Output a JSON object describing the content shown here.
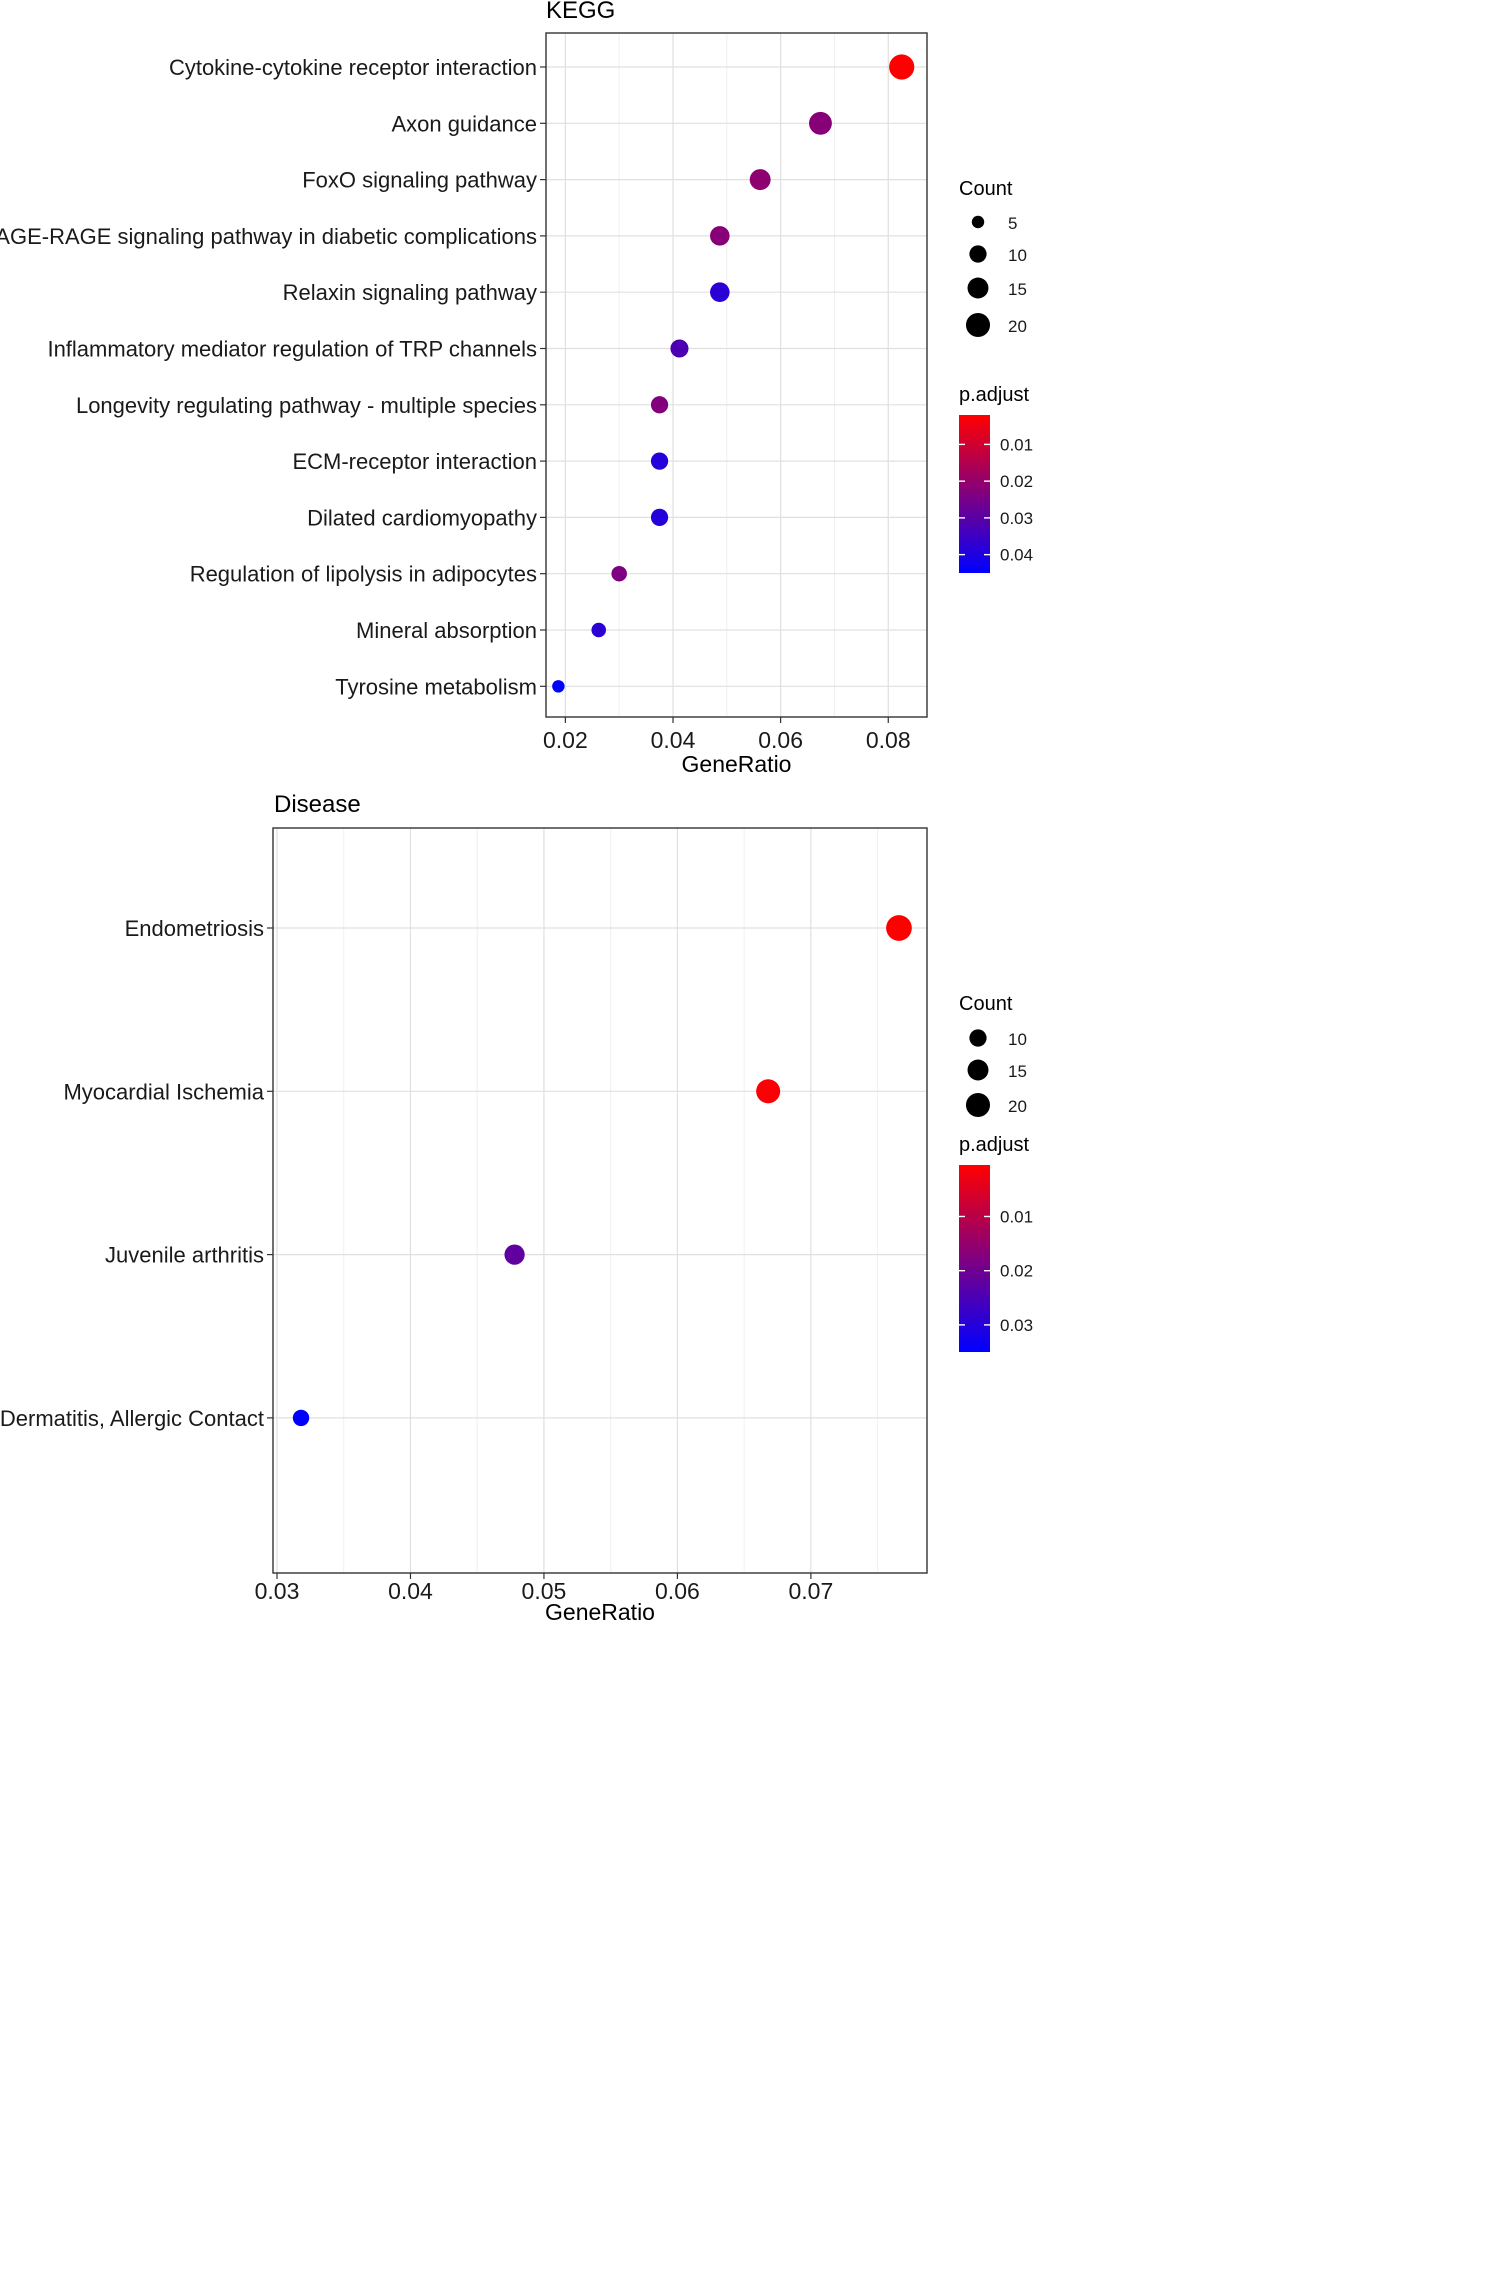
{
  "chart_data": [
    {
      "type": "scatter",
      "title": "KEGG",
      "xlabel": "GeneRatio",
      "ylabel": "",
      "xlim": [
        0.0164,
        0.0872
      ],
      "xticks": [
        0.02,
        0.04,
        0.06,
        0.08
      ],
      "xtick_labels": [
        "0.02",
        "0.04",
        "0.06",
        "0.08"
      ],
      "grid": true,
      "categories": [
        "Cytokine-cytokine receptor interaction",
        "Axon guidance",
        "FoxO signaling pathway",
        "AGE-RAGE signaling pathway in diabetic complications",
        "Relaxin signaling pathway",
        "Inflammatory mediator regulation of TRP channels",
        "Longevity regulating pathway - multiple species",
        "ECM-receptor interaction",
        "Dilated cardiomyopathy",
        "Regulation of lipolysis in adipocytes",
        "Mineral absorption",
        "Tyrosine metabolism"
      ],
      "points": [
        {
          "category": "Cytokine-cytokine receptor interaction",
          "x": 0.0825,
          "count": 22,
          "p_adjust": 0.002
        },
        {
          "category": "Axon guidance",
          "x": 0.0674,
          "count": 18,
          "p_adjust": 0.022
        },
        {
          "category": "FoxO signaling pathway",
          "x": 0.0562,
          "count": 15,
          "p_adjust": 0.021
        },
        {
          "category": "AGE-RAGE signaling pathway in diabetic complications",
          "x": 0.0487,
          "count": 13,
          "p_adjust": 0.022
        },
        {
          "category": "Relaxin signaling pathway",
          "x": 0.0487,
          "count": 13,
          "p_adjust": 0.038
        },
        {
          "category": "Inflammatory mediator regulation of TRP channels",
          "x": 0.0412,
          "count": 11,
          "p_adjust": 0.032
        },
        {
          "category": "Longevity regulating pathway - multiple species",
          "x": 0.0375,
          "count": 10,
          "p_adjust": 0.023
        },
        {
          "category": "ECM-receptor interaction",
          "x": 0.0375,
          "count": 10,
          "p_adjust": 0.039
        },
        {
          "category": "Dilated cardiomyopathy",
          "x": 0.0375,
          "count": 10,
          "p_adjust": 0.039
        },
        {
          "category": "Regulation of lipolysis in adipocytes",
          "x": 0.03,
          "count": 8,
          "p_adjust": 0.024
        },
        {
          "category": "Mineral absorption",
          "x": 0.0262,
          "count": 7,
          "p_adjust": 0.038
        },
        {
          "category": "Tyrosine metabolism",
          "x": 0.0187,
          "count": 5,
          "p_adjust": 0.045
        }
      ],
      "size_legend": {
        "title": "Count",
        "values": [
          5,
          10,
          15,
          20
        ],
        "labels": [
          "5",
          "10",
          "15",
          "20"
        ]
      },
      "color_legend": {
        "title": "p.adjust",
        "ticks": [
          0.01,
          0.02,
          0.03,
          0.04
        ],
        "tick_labels": [
          "0.01",
          "0.02",
          "0.03",
          "0.04"
        ],
        "range": [
          0.002,
          0.045
        ],
        "low_color": "#ff0000",
        "high_color": "#0000ff"
      }
    },
    {
      "type": "scatter",
      "title": "Disease",
      "xlabel": "GeneRatio",
      "ylabel": "",
      "xlim": [
        0.0297,
        0.0787
      ],
      "xticks": [
        0.03,
        0.04,
        0.05,
        0.06,
        0.07
      ],
      "xtick_labels": [
        "0.03",
        "0.04",
        "0.05",
        "0.06",
        "0.07"
      ],
      "grid": true,
      "categories": [
        "Endometriosis",
        "Myocardial Ischemia",
        "Juvenile arthritis",
        "Dermatitis, Allergic Contact"
      ],
      "points": [
        {
          "category": "Endometriosis",
          "x": 0.0766,
          "count": 23,
          "p_adjust": 0.0005
        },
        {
          "category": "Myocardial Ischemia",
          "x": 0.0668,
          "count": 20,
          "p_adjust": 0.001
        },
        {
          "category": "Juvenile arthritis",
          "x": 0.0478,
          "count": 14,
          "p_adjust": 0.022
        },
        {
          "category": "Dermatitis, Allergic Contact",
          "x": 0.0318,
          "count": 9,
          "p_adjust": 0.035
        }
      ],
      "size_legend": {
        "title": "Count",
        "values": [
          10,
          15,
          20
        ],
        "labels": [
          "10",
          "15",
          "20"
        ]
      },
      "color_legend": {
        "title": "p.adjust",
        "ticks": [
          0.01,
          0.02,
          0.03
        ],
        "tick_labels": [
          "0.01",
          "0.02",
          "0.03"
        ],
        "range": [
          0.0005,
          0.035
        ],
        "low_color": "#ff0000",
        "high_color": "#0000ff"
      }
    }
  ]
}
